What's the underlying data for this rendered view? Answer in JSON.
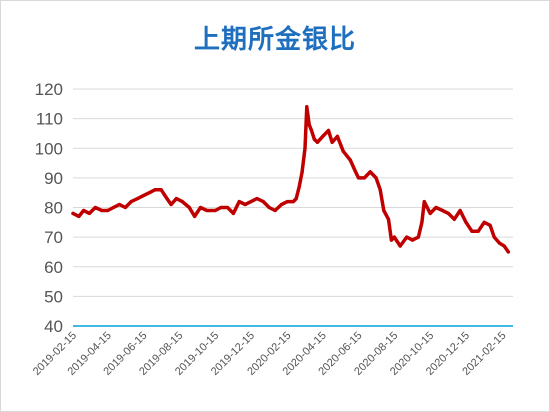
{
  "chart_data": {
    "type": "line",
    "title": "上期所金银比",
    "xlabel": "",
    "ylabel": "",
    "ylim": [
      40,
      120
    ],
    "yticks": [
      "40",
      "50",
      "60",
      "70",
      "80",
      "90",
      "100",
      "110",
      "120"
    ],
    "xlim": [
      "2019-02-15",
      "2021-03-05"
    ],
    "xticks": [
      "2019-02-15",
      "2019-04-15",
      "2019-06-15",
      "2019-08-15",
      "2019-10-15",
      "2019-12-15",
      "2020-02-15",
      "2020-04-15",
      "2020-06-15",
      "2020-08-15",
      "2020-10-15",
      "2020-12-15",
      "2021-02-15"
    ],
    "grid": "horizontal",
    "legend": "none",
    "series": [
      {
        "color": "#c00000",
        "x": [
          "2019-02-15",
          "2019-02-25",
          "2019-03-05",
          "2019-03-15",
          "2019-03-25",
          "2019-04-05",
          "2019-04-15",
          "2019-04-25",
          "2019-05-05",
          "2019-05-15",
          "2019-05-25",
          "2019-06-05",
          "2019-06-15",
          "2019-06-25",
          "2019-07-05",
          "2019-07-15",
          "2019-07-25",
          "2019-08-01",
          "2019-08-10",
          "2019-08-20",
          "2019-09-01",
          "2019-09-10",
          "2019-09-20",
          "2019-10-01",
          "2019-10-15",
          "2019-10-25",
          "2019-11-05",
          "2019-11-15",
          "2019-11-25",
          "2019-12-05",
          "2019-12-15",
          "2019-12-25",
          "2020-01-05",
          "2020-01-15",
          "2020-01-25",
          "2020-02-05",
          "2020-02-15",
          "2020-02-25",
          "2020-03-01",
          "2020-03-06",
          "2020-03-11",
          "2020-03-16",
          "2020-03-19",
          "2020-03-23",
          "2020-03-27",
          "2020-04-01",
          "2020-04-06",
          "2020-04-15",
          "2020-04-25",
          "2020-05-01",
          "2020-05-10",
          "2020-05-20",
          "2020-06-01",
          "2020-06-10",
          "2020-06-15",
          "2020-06-25",
          "2020-07-05",
          "2020-07-15",
          "2020-07-22",
          "2020-07-28",
          "2020-08-05",
          "2020-08-10",
          "2020-08-15",
          "2020-08-25",
          "2020-09-05",
          "2020-09-15",
          "2020-09-25",
          "2020-10-01",
          "2020-10-05",
          "2020-10-10",
          "2020-10-15",
          "2020-10-25",
          "2020-11-05",
          "2020-11-15",
          "2020-11-25",
          "2020-12-05",
          "2020-12-15",
          "2020-12-25",
          "2021-01-05",
          "2021-01-15",
          "2021-01-25",
          "2021-02-01",
          "2021-02-10",
          "2021-02-18",
          "2021-02-25"
        ],
        "values": [
          78,
          77,
          79,
          78,
          80,
          79,
          79,
          80,
          81,
          80,
          82,
          83,
          84,
          85,
          86,
          86,
          83,
          81,
          83,
          82,
          80,
          77,
          80,
          79,
          79,
          80,
          80,
          78,
          82,
          81,
          82,
          83,
          82,
          80,
          79,
          81,
          82,
          82,
          83,
          87,
          92,
          100,
          114,
          108,
          106,
          103,
          102,
          104,
          106,
          102,
          104,
          99,
          96,
          92,
          90,
          90,
          92,
          90,
          86,
          79,
          76,
          69,
          70,
          67,
          70,
          69,
          70,
          75,
          82,
          80,
          78,
          80,
          79,
          78,
          76,
          79,
          75,
          72,
          72,
          75,
          74,
          70,
          68,
          67,
          65
        ]
      }
    ]
  }
}
